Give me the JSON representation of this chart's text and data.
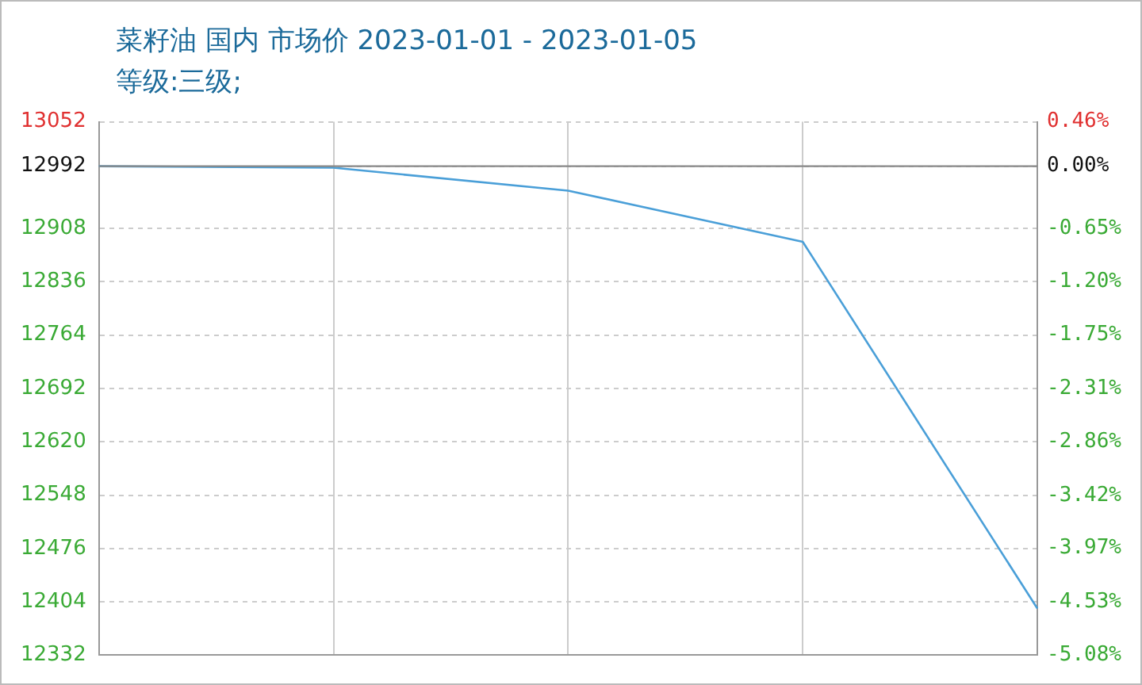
{
  "chart_data": {
    "type": "line",
    "title": "菜籽油 国内 市场价 2023-01-01 - 2023-01-05",
    "subtitle": "等级:三级;",
    "categories": [
      null,
      null,
      null,
      null,
      null
    ],
    "series": [
      {
        "color": "#4a9fd8",
        "values": [
          12992,
          12990,
          12959,
          12890,
          12395
        ]
      }
    ],
    "ylim": [
      12332,
      13052
    ],
    "yticks": [
      13052,
      12992,
      12908,
      12836,
      12764,
      12692,
      12620,
      12548,
      12476,
      12404,
      12332
    ],
    "y2lim": [
      -5.08,
      0.46
    ],
    "y2ticks": [
      {
        "value": 0.46,
        "label": "0.46%"
      },
      {
        "value": 0,
        "label": "0.00%"
      },
      {
        "value": -0.65,
        "label": "-0.65%"
      },
      {
        "value": -1.2,
        "label": "-1.20%"
      },
      {
        "value": -1.75,
        "label": "-1.75%"
      },
      {
        "value": -2.31,
        "label": "-2.31%"
      },
      {
        "value": -2.86,
        "label": "-2.86%"
      },
      {
        "value": -3.42,
        "label": "-3.42%"
      },
      {
        "value": -3.97,
        "label": "-3.97%"
      },
      {
        "value": -4.53,
        "label": "-4.53%"
      },
      {
        "value": -5.08,
        "label": "-5.08%"
      }
    ],
    "ref_lines": [
      {
        "axis": "y",
        "value": 12992,
        "color": "#888888",
        "line_style": "solid"
      }
    ],
    "grid": true,
    "legend": false,
    "marker": "none",
    "line_style": "solid"
  }
}
